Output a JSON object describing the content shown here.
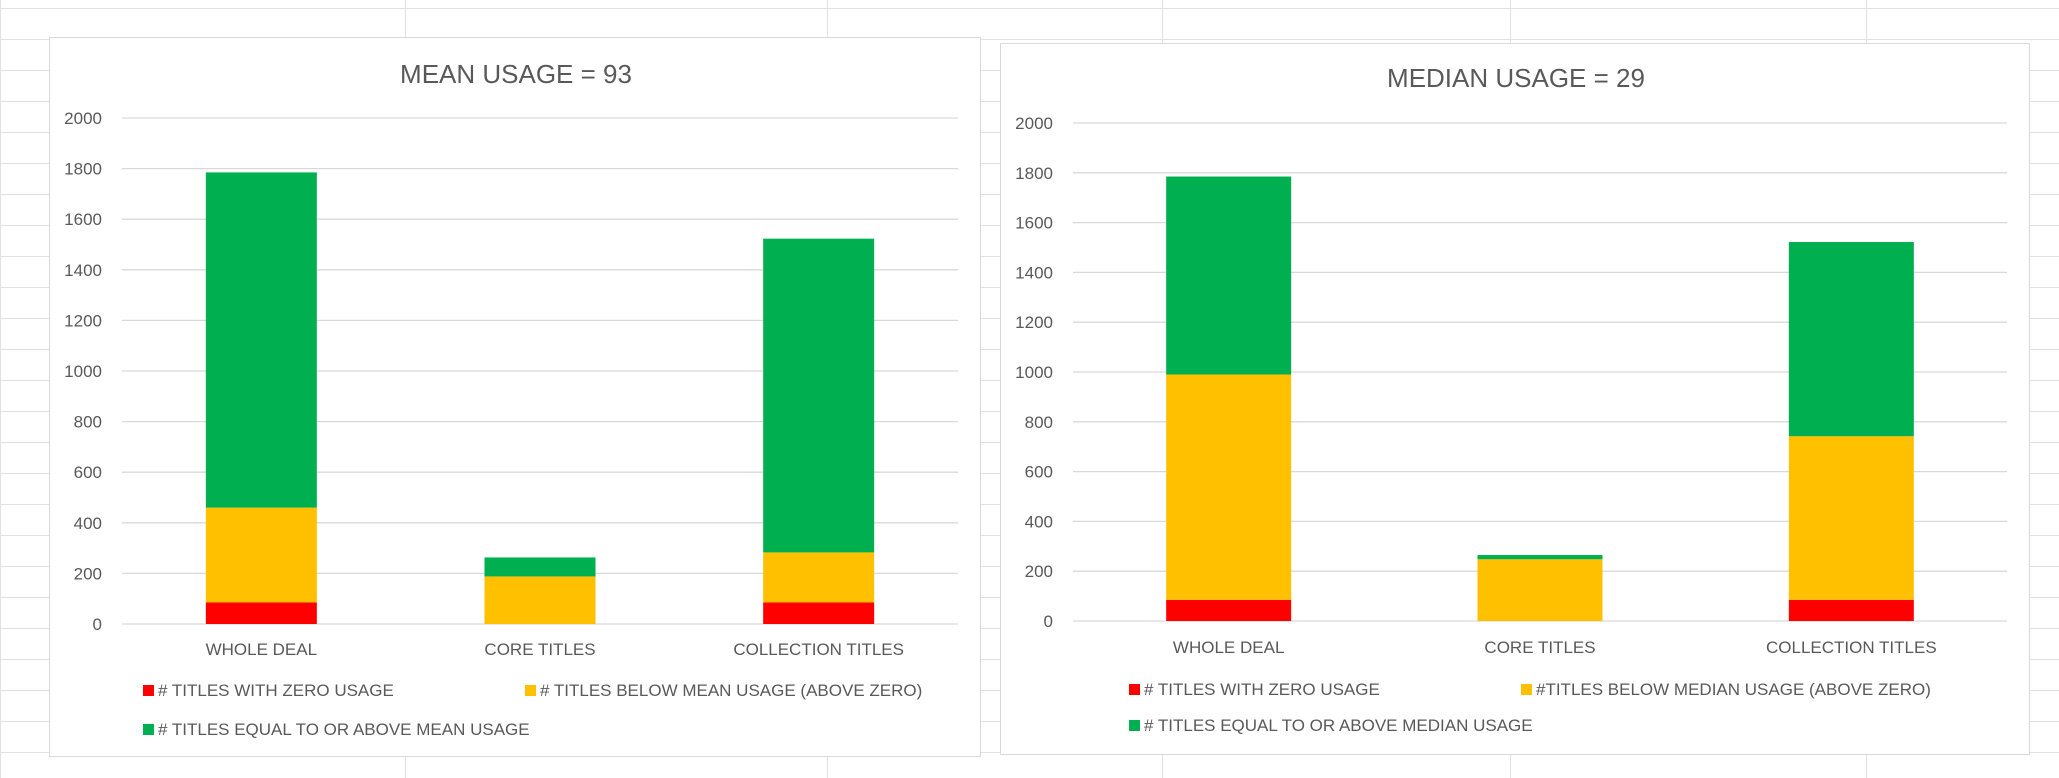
{
  "colors": {
    "zero": "#ff0000",
    "below": "#ffc000",
    "above": "#00b050",
    "gridline": "#d9d9d9",
    "text": "#595959",
    "sheet_grid": "#e1e1e1"
  },
  "chart_data": [
    {
      "type": "bar",
      "stacked": true,
      "title": "MEAN USAGE = 93",
      "categories": [
        "WHOLE DEAL",
        "CORE TITLES",
        "COLLECTION TITLES"
      ],
      "series": [
        {
          "name": "# TITLES WITH ZERO USAGE",
          "color": "#ff0000",
          "values": [
            85,
            0,
            85
          ]
        },
        {
          "name": "# TITLES BELOW MEAN USAGE (ABOVE ZERO)",
          "color": "#ffc000",
          "values": [
            375,
            188,
            198
          ]
        },
        {
          "name": "# TITLES EQUAL TO OR ABOVE MEAN USAGE",
          "color": "#00b050",
          "values": [
            1325,
            75,
            1240
          ]
        }
      ],
      "ylim": [
        0,
        2000
      ],
      "yticks": [
        "0",
        "200",
        "400",
        "600",
        "800",
        "1000",
        "1200",
        "1400",
        "1600",
        "1800",
        "2000"
      ],
      "grid": true,
      "legend_position": "bottom"
    },
    {
      "type": "bar",
      "stacked": true,
      "title": "MEDIAN USAGE = 29",
      "categories": [
        "WHOLE DEAL",
        "CORE TITLES",
        "COLLECTION TITLES"
      ],
      "series": [
        {
          "name": "# TITLES WITH ZERO USAGE",
          "color": "#ff0000",
          "values": [
            85,
            0,
            85
          ]
        },
        {
          "name": "#TITLES BELOW MEDIAN USAGE (ABOVE ZERO)",
          "color": "#ffc000",
          "values": [
            905,
            248,
            657
          ]
        },
        {
          "name": "# TITLES EQUAL TO OR ABOVE MEDIAN USAGE",
          "color": "#00b050",
          "values": [
            795,
            17,
            780
          ]
        }
      ],
      "ylim": [
        0,
        2000
      ],
      "yticks": [
        "0",
        "200",
        "400",
        "600",
        "800",
        "1000",
        "1200",
        "1400",
        "1600",
        "1800",
        "2000"
      ],
      "grid": true,
      "legend_position": "bottom"
    }
  ]
}
